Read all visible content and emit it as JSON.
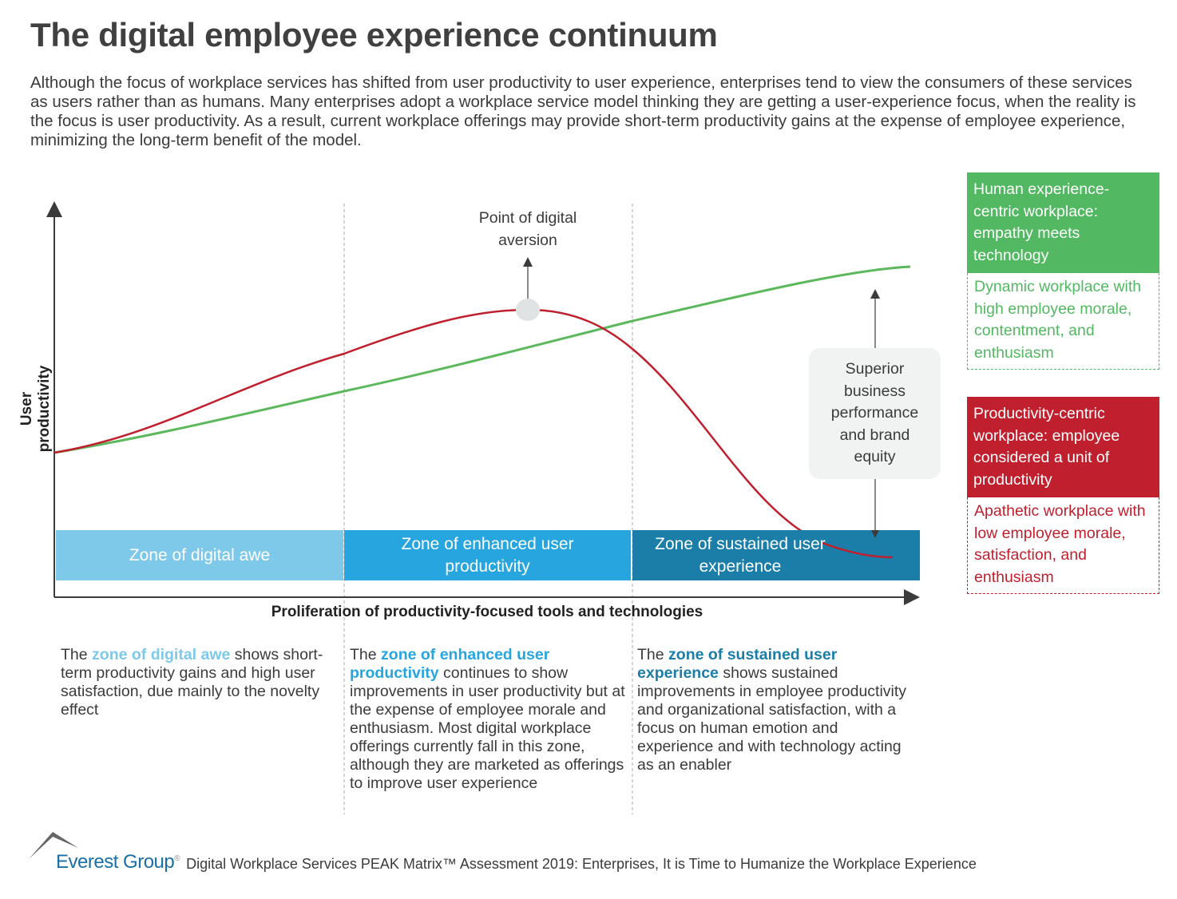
{
  "title": "The digital employee experience continuum",
  "intro": "Although the focus of workplace services has shifted from user productivity to user experience, enterprises tend to view the consumers of these services as users rather than as humans. Many enterprises adopt a workplace service model thinking they are getting a user-experience focus, when the reality is the focus is user productivity. As a result, current workplace offerings may provide short-term productivity gains at the expense of employee experience, minimizing the long-term benefit of the model.",
  "diagram": {
    "y_axis_label": "User productivity",
    "x_axis_label": "Proliferation of productivity-focused tools and technologies",
    "peak_annotation": "Point of digital aversion",
    "callout": "Superior business performance and brand equity",
    "zones": [
      {
        "label": "Zone of digital awe",
        "color": "#7ec8ea"
      },
      {
        "label": "Zone of enhanced user productivity",
        "color": "#27a5de"
      },
      {
        "label": "Zone of sustained user experience",
        "color": "#1a7ea9"
      }
    ],
    "curve_colors": {
      "human": "#5cb85c",
      "productivity": "#c0202e"
    }
  },
  "descriptions": [
    {
      "prefix": "The ",
      "highlight": "zone of digital awe",
      "suffix": " shows short-term productivity gains and high user satisfaction, due mainly to the novelty effect",
      "color": "#7ec8ea"
    },
    {
      "prefix": "The ",
      "highlight": "zone of enhanced user productivity",
      "suffix": " continues to show improvements in user productivity but at the expense of employee morale and enthusiasm. Most digital workplace offerings currently fall in this zone, although they are marketed as offerings to improve user experience",
      "color": "#27a5de"
    },
    {
      "prefix": "The ",
      "highlight": "zone of sustained user experience",
      "suffix": " shows sustained improvements in employee productivity and organizational satisfaction, with a focus on human emotion and experience and with technology acting as an enabler",
      "color": "#1a7ea9"
    }
  ],
  "legend": [
    {
      "heading": "Human experience-centric workplace: empathy meets technology",
      "detail": "Dynamic workplace with high employee morale, contentment, and enthusiasm",
      "color": "#52b862"
    },
    {
      "heading": "Productivity-centric workplace: employee considered a unit of productivity",
      "detail": "Apathetic workplace with low employee morale, satisfaction, and enthusiasm",
      "color": "#c0202e"
    }
  ],
  "footer": {
    "brand": "Everest Group",
    "source": "Digital Workplace Services PEAK Matrix™ Assessment 2019: Enterprises, It is Time to Humanize the Workplace Experience"
  }
}
